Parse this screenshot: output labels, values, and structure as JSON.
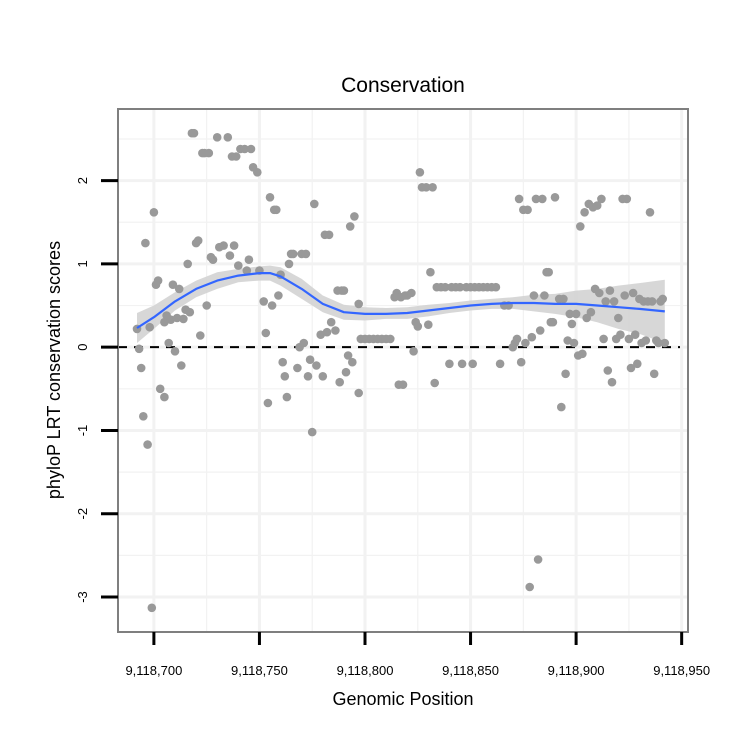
{
  "chart_data": {
    "type": "scatter",
    "title": "Conservation",
    "xlabel": "Genomic Position",
    "ylabel": "phyloP LRT conservation scores",
    "xlim": [
      9118683,
      9118953
    ],
    "ylim": [
      -3.42,
      2.86
    ],
    "x_ticks": [
      9118700,
      9118750,
      9118800,
      9118850,
      9118900,
      9118950
    ],
    "x_tick_labels": [
      "9,118,700",
      "9,118,750",
      "9,118,800",
      "9,118,850",
      "9,118,900",
      "9,118,950"
    ],
    "y_ticks": [
      -3,
      -2,
      -1,
      0,
      1,
      2
    ],
    "y_tick_labels": [
      "-3",
      "-2",
      "-1",
      "0",
      "1",
      "2"
    ],
    "reference_line": {
      "y": 0,
      "style": "dashed"
    },
    "point_color": "#999999",
    "smooth_color": "#3366ff",
    "band_color": "#d3d3d3",
    "grid": true,
    "points": [
      [
        9118692,
        0.22
      ],
      [
        9118693,
        -0.02
      ],
      [
        9118694,
        -0.25
      ],
      [
        9118695,
        -0.83
      ],
      [
        9118696,
        1.25
      ],
      [
        9118697,
        -1.17
      ],
      [
        9118698,
        0.24
      ],
      [
        9118699,
        -3.13
      ],
      [
        9118700,
        1.62
      ],
      [
        9118701,
        0.75
      ],
      [
        9118702,
        0.8
      ],
      [
        9118703,
        -0.5
      ],
      [
        9118705,
        0.3
      ],
      [
        9118705,
        -0.6
      ],
      [
        9118706,
        0.38
      ],
      [
        9118707,
        0.05
      ],
      [
        9118708,
        0.33
      ],
      [
        9118709,
        0.75
      ],
      [
        9118710,
        -0.05
      ],
      [
        9118711,
        0.35
      ],
      [
        9118712,
        0.7
      ],
      [
        9118713,
        -0.22
      ],
      [
        9118714,
        0.34
      ],
      [
        9118715,
        0.45
      ],
      [
        9118716,
        1.0
      ],
      [
        9118717,
        0.42
      ],
      [
        9118718,
        2.57
      ],
      [
        9118719,
        2.57
      ],
      [
        9118720,
        1.25
      ],
      [
        9118721,
        1.28
      ],
      [
        9118722,
        0.14
      ],
      [
        9118723,
        2.33
      ],
      [
        9118724,
        2.33
      ],
      [
        9118725,
        0.5
      ],
      [
        9118726,
        2.33
      ],
      [
        9118727,
        1.08
      ],
      [
        9118728,
        1.05
      ],
      [
        9118730,
        2.52
      ],
      [
        9118731,
        1.2
      ],
      [
        9118733,
        1.22
      ],
      [
        9118735,
        2.52
      ],
      [
        9118736,
        1.1
      ],
      [
        9118737,
        2.29
      ],
      [
        9118738,
        1.22
      ],
      [
        9118739,
        2.29
      ],
      [
        9118740,
        0.98
      ],
      [
        9118741,
        2.38
      ],
      [
        9118743,
        2.38
      ],
      [
        9118744,
        0.92
      ],
      [
        9118745,
        1.05
      ],
      [
        9118746,
        2.38
      ],
      [
        9118747,
        2.16
      ],
      [
        9118749,
        2.1
      ],
      [
        9118750,
        0.92
      ],
      [
        9118752,
        0.55
      ],
      [
        9118753,
        0.17
      ],
      [
        9118754,
        -0.67
      ],
      [
        9118755,
        1.8
      ],
      [
        9118756,
        0.5
      ],
      [
        9118757,
        1.65
      ],
      [
        9118758,
        1.65
      ],
      [
        9118759,
        0.62
      ],
      [
        9118760,
        0.87
      ],
      [
        9118761,
        -0.18
      ],
      [
        9118762,
        -0.35
      ],
      [
        9118763,
        -0.6
      ],
      [
        9118764,
        1.0
      ],
      [
        9118765,
        1.12
      ],
      [
        9118766,
        1.12
      ],
      [
        9118768,
        -0.25
      ],
      [
        9118769,
        0.0
      ],
      [
        9118770,
        1.12
      ],
      [
        9118771,
        0.05
      ],
      [
        9118772,
        1.12
      ],
      [
        9118773,
        -0.35
      ],
      [
        9118774,
        -0.15
      ],
      [
        9118775,
        -1.02
      ],
      [
        9118776,
        1.72
      ],
      [
        9118777,
        -0.22
      ],
      [
        9118779,
        0.15
      ],
      [
        9118780,
        -0.35
      ],
      [
        9118781,
        1.35
      ],
      [
        9118782,
        0.18
      ],
      [
        9118783,
        1.35
      ],
      [
        9118784,
        0.3
      ],
      [
        9118786,
        0.2
      ],
      [
        9118787,
        0.68
      ],
      [
        9118788,
        -0.42
      ],
      [
        9118789,
        0.68
      ],
      [
        9118790,
        0.68
      ],
      [
        9118791,
        -0.3
      ],
      [
        9118792,
        -0.1
      ],
      [
        9118793,
        1.45
      ],
      [
        9118794,
        -0.18
      ],
      [
        9118795,
        1.57
      ],
      [
        9118797,
        -0.55
      ],
      [
        9118797,
        0.52
      ],
      [
        9118798,
        0.1
      ],
      [
        9118800,
        0.1
      ],
      [
        9118802,
        0.1
      ],
      [
        9118804,
        0.1
      ],
      [
        9118806,
        0.1
      ],
      [
        9118808,
        0.1
      ],
      [
        9118810,
        0.1
      ],
      [
        9118812,
        0.1
      ],
      [
        9118814,
        0.6
      ],
      [
        9118815,
        0.65
      ],
      [
        9118816,
        -0.45
      ],
      [
        9118817,
        0.6
      ],
      [
        9118818,
        -0.45
      ],
      [
        9118819,
        0.62
      ],
      [
        9118820,
        0.62
      ],
      [
        9118822,
        0.65
      ],
      [
        9118823,
        -0.05
      ],
      [
        9118824,
        0.3
      ],
      [
        9118825,
        0.25
      ],
      [
        9118826,
        2.1
      ],
      [
        9118827,
        1.92
      ],
      [
        9118829,
        1.92
      ],
      [
        9118830,
        0.27
      ],
      [
        9118831,
        0.9
      ],
      [
        9118832,
        1.92
      ],
      [
        9118833,
        -0.43
      ],
      [
        9118834,
        0.72
      ],
      [
        9118836,
        0.72
      ],
      [
        9118838,
        0.72
      ],
      [
        9118840,
        -0.2
      ],
      [
        9118841,
        0.72
      ],
      [
        9118843,
        0.72
      ],
      [
        9118845,
        0.72
      ],
      [
        9118846,
        -0.2
      ],
      [
        9118848,
        0.72
      ],
      [
        9118850,
        0.72
      ],
      [
        9118851,
        -0.2
      ],
      [
        9118852,
        0.72
      ],
      [
        9118854,
        0.72
      ],
      [
        9118856,
        0.72
      ],
      [
        9118858,
        0.72
      ],
      [
        9118860,
        0.72
      ],
      [
        9118862,
        0.72
      ],
      [
        9118864,
        -0.2
      ],
      [
        9118866,
        0.5
      ],
      [
        9118868,
        0.5
      ],
      [
        9118870,
        0.0
      ],
      [
        9118871,
        0.05
      ],
      [
        9118872,
        0.1
      ],
      [
        9118873,
        1.78
      ],
      [
        9118874,
        -0.18
      ],
      [
        9118875,
        1.65
      ],
      [
        9118876,
        0.05
      ],
      [
        9118877,
        1.65
      ],
      [
        9118878,
        -2.88
      ],
      [
        9118879,
        0.12
      ],
      [
        9118880,
        0.62
      ],
      [
        9118881,
        1.78
      ],
      [
        9118882,
        -2.55
      ],
      [
        9118883,
        0.2
      ],
      [
        9118884,
        1.78
      ],
      [
        9118885,
        0.62
      ],
      [
        9118886,
        0.9
      ],
      [
        9118887,
        0.9
      ],
      [
        9118888,
        0.3
      ],
      [
        9118889,
        0.3
      ],
      [
        9118890,
        1.8
      ],
      [
        9118892,
        0.58
      ],
      [
        9118893,
        -0.72
      ],
      [
        9118894,
        0.58
      ],
      [
        9118895,
        -0.32
      ],
      [
        9118896,
        0.08
      ],
      [
        9118897,
        0.4
      ],
      [
        9118898,
        0.28
      ],
      [
        9118899,
        0.05
      ],
      [
        9118900,
        0.4
      ],
      [
        9118901,
        -0.1
      ],
      [
        9118902,
        1.45
      ],
      [
        9118903,
        -0.08
      ],
      [
        9118904,
        1.62
      ],
      [
        9118905,
        0.35
      ],
      [
        9118906,
        1.72
      ],
      [
        9118907,
        0.42
      ],
      [
        9118908,
        1.68
      ],
      [
        9118909,
        0.7
      ],
      [
        9118910,
        1.7
      ],
      [
        9118911,
        0.65
      ],
      [
        9118912,
        1.78
      ],
      [
        9118913,
        0.1
      ],
      [
        9118914,
        0.55
      ],
      [
        9118915,
        -0.28
      ],
      [
        9118916,
        0.68
      ],
      [
        9118917,
        -0.42
      ],
      [
        9118918,
        0.55
      ],
      [
        9118919,
        0.1
      ],
      [
        9118920,
        0.35
      ],
      [
        9118921,
        0.15
      ],
      [
        9118922,
        1.78
      ],
      [
        9118923,
        0.62
      ],
      [
        9118924,
        1.78
      ],
      [
        9118925,
        0.1
      ],
      [
        9118926,
        -0.25
      ],
      [
        9118927,
        0.65
      ],
      [
        9118928,
        0.15
      ],
      [
        9118929,
        -0.2
      ],
      [
        9118930,
        0.58
      ],
      [
        9118931,
        0.05
      ],
      [
        9118932,
        0.55
      ],
      [
        9118933,
        0.08
      ],
      [
        9118934,
        0.55
      ],
      [
        9118935,
        1.62
      ],
      [
        9118936,
        0.55
      ],
      [
        9118937,
        -0.32
      ],
      [
        9118938,
        0.08
      ],
      [
        9118939,
        0.05
      ],
      [
        9118940,
        0.55
      ],
      [
        9118941,
        0.58
      ],
      [
        9118942,
        0.05
      ]
    ],
    "smooth": {
      "x": [
        9118692,
        9118700,
        9118710,
        9118720,
        9118730,
        9118740,
        9118750,
        9118755,
        9118760,
        9118770,
        9118780,
        9118790,
        9118800,
        9118810,
        9118820,
        9118830,
        9118840,
        9118850,
        9118860,
        9118870,
        9118880,
        9118890,
        9118900,
        9118910,
        9118920,
        9118930,
        9118942
      ],
      "y": [
        0.23,
        0.36,
        0.55,
        0.7,
        0.8,
        0.86,
        0.89,
        0.89,
        0.85,
        0.7,
        0.52,
        0.42,
        0.4,
        0.4,
        0.41,
        0.44,
        0.47,
        0.5,
        0.52,
        0.53,
        0.53,
        0.52,
        0.52,
        0.5,
        0.48,
        0.46,
        0.43
      ],
      "lower": [
        0.05,
        0.22,
        0.44,
        0.6,
        0.7,
        0.78,
        0.8,
        0.8,
        0.74,
        0.58,
        0.42,
        0.33,
        0.32,
        0.34,
        0.34,
        0.37,
        0.41,
        0.44,
        0.46,
        0.46,
        0.43,
        0.4,
        0.36,
        0.3,
        0.22,
        0.16,
        0.05
      ],
      "upper": [
        0.41,
        0.5,
        0.66,
        0.8,
        0.9,
        0.94,
        0.97,
        0.98,
        0.96,
        0.82,
        0.62,
        0.51,
        0.48,
        0.47,
        0.48,
        0.51,
        0.53,
        0.56,
        0.58,
        0.6,
        0.63,
        0.64,
        0.68,
        0.7,
        0.74,
        0.77,
        0.81
      ]
    }
  }
}
